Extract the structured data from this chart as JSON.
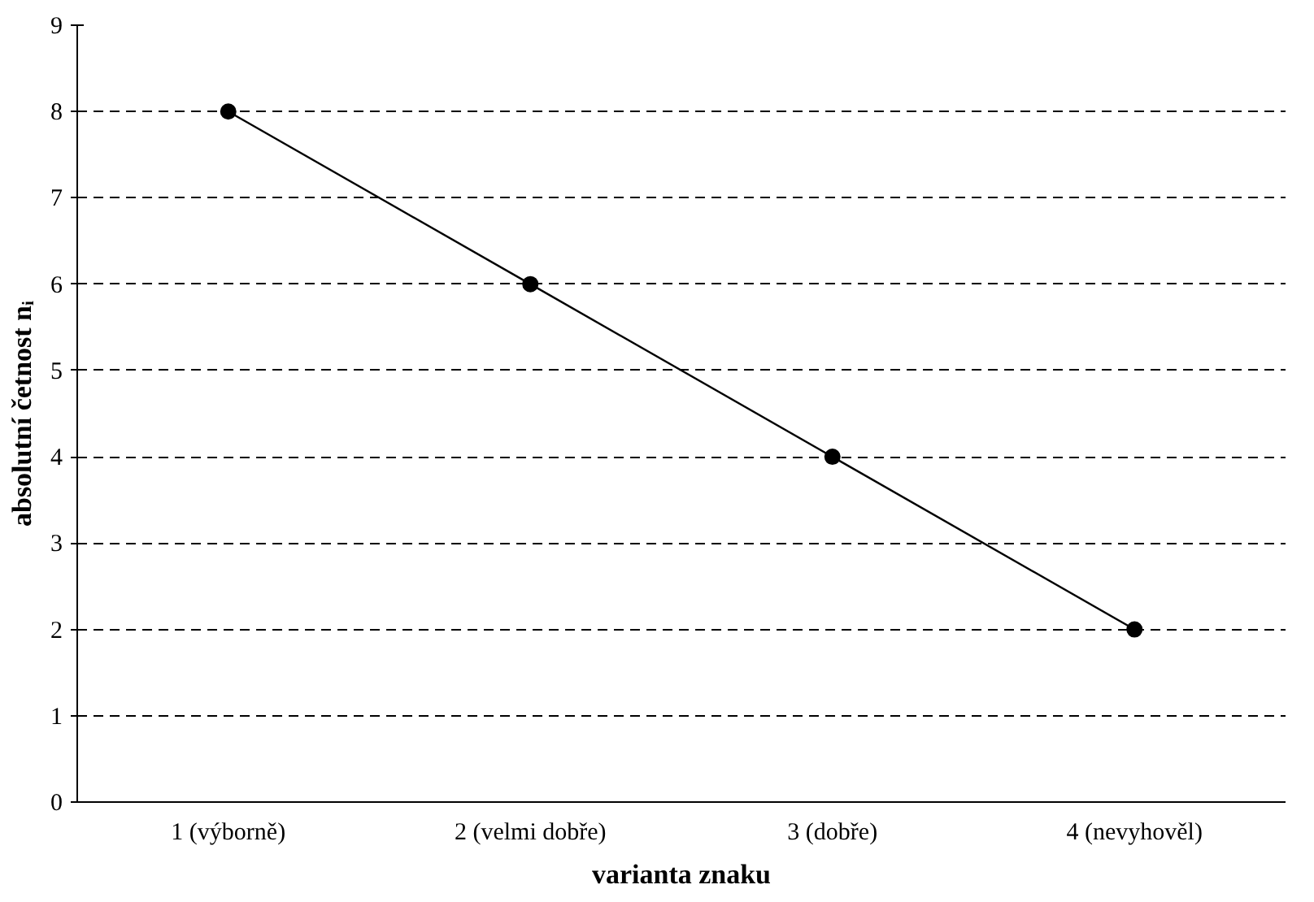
{
  "chart_data": {
    "type": "line",
    "xlabel": "varianta znaku",
    "ylabel": "absolutní četnost nᵢ",
    "categories": [
      "1 (výborně)",
      "2 (velmi dobře)",
      "3 (dobře)",
      "4 (nevyhověl)"
    ],
    "values": [
      8,
      6,
      4,
      2
    ],
    "color": "#000000",
    "marker": "circle",
    "line_style": "solid",
    "ylim": [
      0,
      9
    ],
    "yticks": [
      0,
      1,
      2,
      3,
      4,
      5,
      6,
      7,
      8,
      9
    ],
    "grid": "y"
  }
}
